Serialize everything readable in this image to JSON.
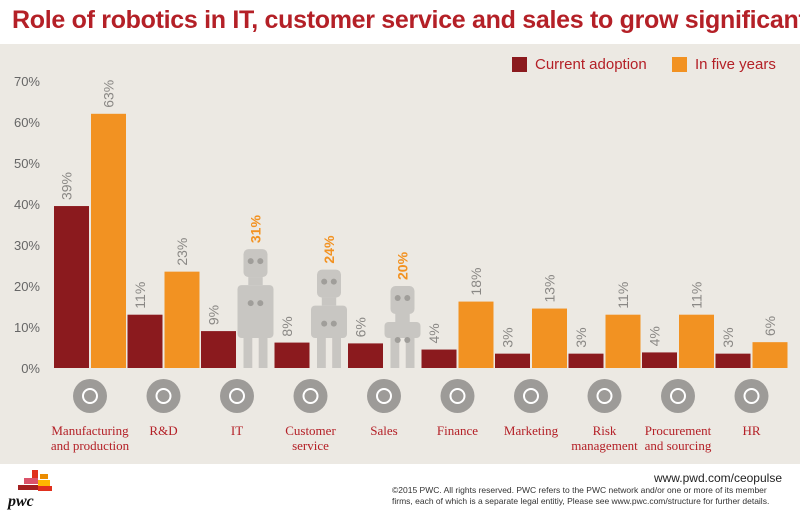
{
  "colors": {
    "current": "#8b1a1e",
    "future": "#f29222",
    "title": "#b42027",
    "robot": "#c8c6c2",
    "icon_circle": "#9d9b98",
    "category_label": "#b42027",
    "tick": "#666666"
  },
  "title": "Role of robotics in IT, customer service and sales to grow significantly",
  "legend": {
    "current": "Current adoption",
    "future": "In five years"
  },
  "chart_data": {
    "type": "bar",
    "categories": [
      "Manufacturing\nand production",
      "R&D",
      "IT",
      "Customer\nservice",
      "Sales",
      "Finance",
      "Marketing",
      "Risk\nmanagement",
      "Procurement\nand sourcing",
      "HR"
    ],
    "icons": [
      "conveyor-icon",
      "microscope-icon",
      "laptop-icon",
      "handshake-icon",
      "money-icon",
      "credit-card-icon",
      "speech-bubbles-icon",
      "warning-icon",
      "magnifier-icon",
      "people-icon"
    ],
    "series": [
      {
        "name": "Current adoption",
        "values": [
          39,
          11,
          9,
          8,
          6,
          4,
          3,
          3,
          4,
          3
        ]
      },
      {
        "name": "In five years",
        "values": [
          63,
          23,
          31,
          24,
          20,
          18,
          13,
          11,
          11,
          6
        ]
      }
    ],
    "bar_heights_note_free": true,
    "bar_values": {
      "current": [
        39.5,
        13,
        9,
        6.2,
        6,
        4.5,
        3.5,
        3.5,
        3.8,
        3.5
      ],
      "future": [
        62,
        23.5,
        0,
        0,
        0,
        16.2,
        14.5,
        13,
        13,
        6.3
      ]
    },
    "robot_levels": [
      null,
      null,
      29,
      24,
      20,
      null,
      null,
      null,
      null,
      null
    ],
    "labels_current": [
      "39%",
      "11%",
      "9%",
      "8%",
      "6%",
      "4%",
      "3%",
      "3%",
      "4%",
      "3%"
    ],
    "labels_future": [
      "63%",
      "23%",
      "31%",
      "24%",
      "20%",
      "18%",
      "13%",
      "11%",
      "11%",
      "6%"
    ],
    "yticks": [
      "0%",
      "10%",
      "20%",
      "30%",
      "40%",
      "50%",
      "60%",
      "70%"
    ],
    "ylim": [
      0,
      70
    ],
    "legend_position": "top-right",
    "grid": false
  },
  "footer": {
    "url": "www.pwd.com/ceopulse",
    "note": "©2015 PWC. All rights reserved. PWC refers to the PWC network and/or one or more of its member firms, each of which is a separate legal entitiy, Please see www.pwc.com/structure for further details.",
    "logo_text": "pwc"
  }
}
